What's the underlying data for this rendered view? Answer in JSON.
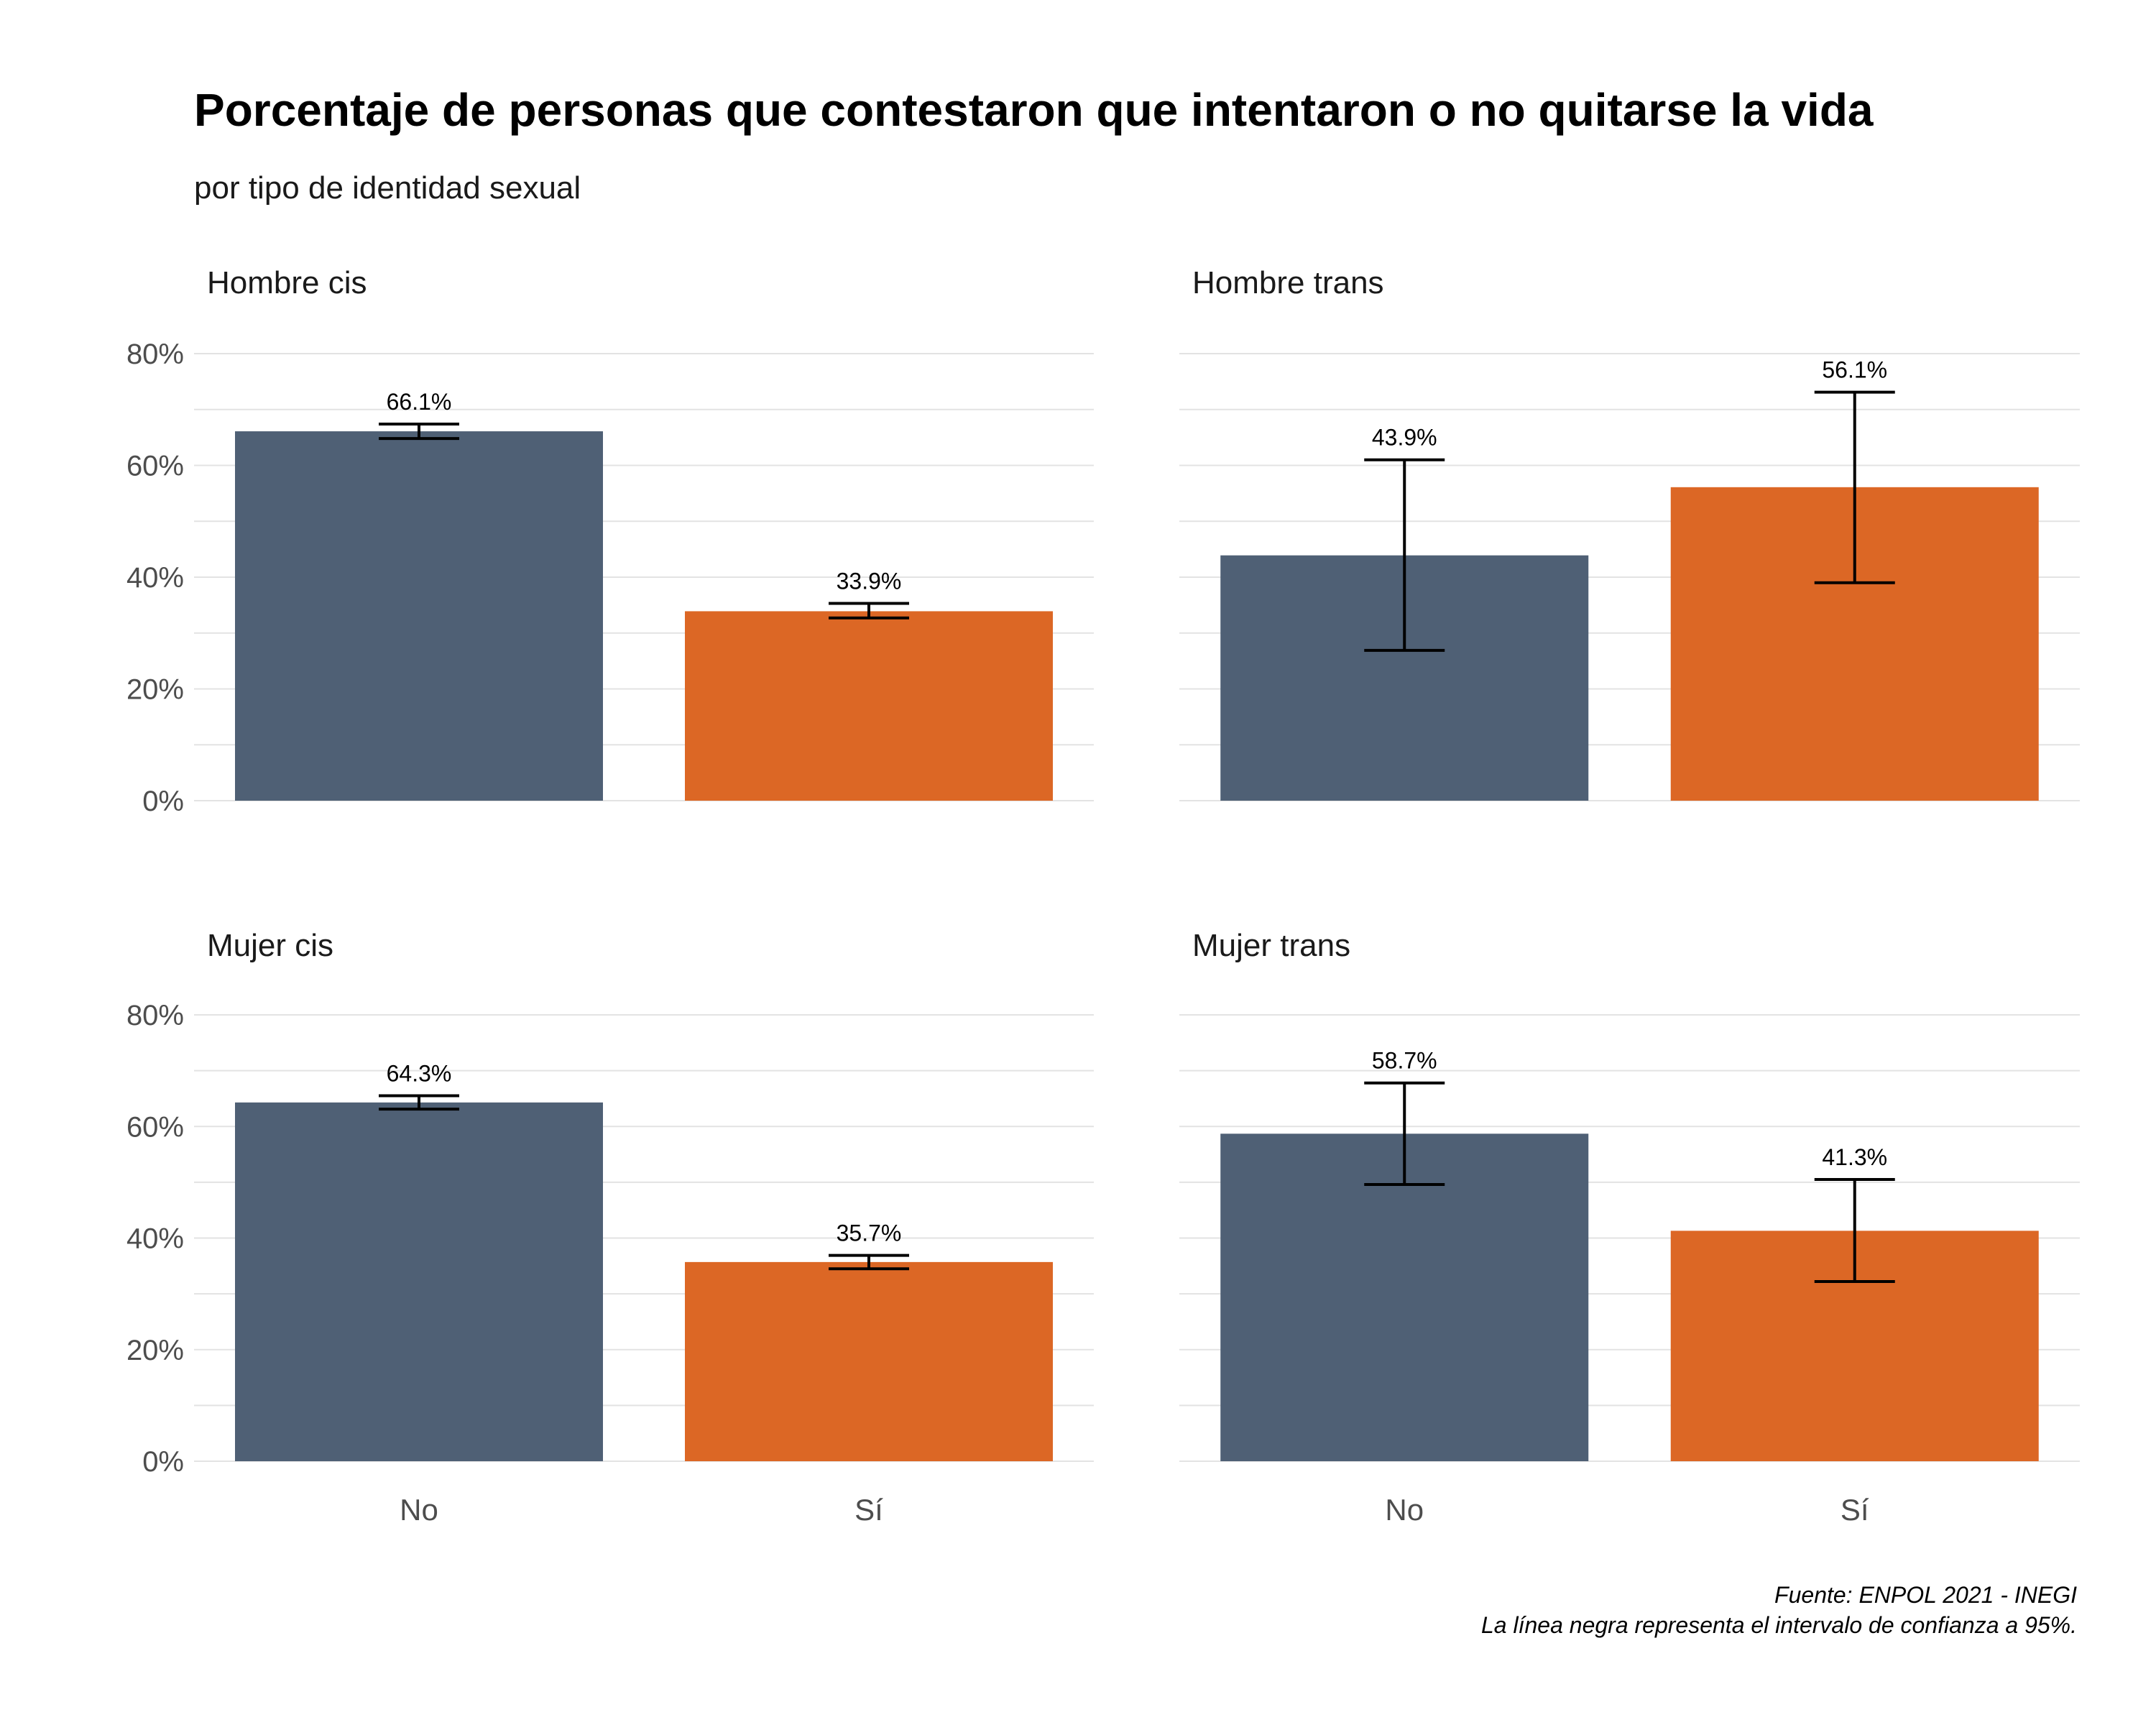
{
  "chart_data": {
    "type": "bar",
    "title": "Porcentaje de personas que contestaron que intentaron o no quitarse la vida",
    "subtitle": "por tipo de identidad sexual",
    "categories": [
      "No",
      "Sí"
    ],
    "y_ticks": [
      "0%",
      "20%",
      "40%",
      "60%",
      "80%"
    ],
    "ylim": [
      0,
      80
    ],
    "grid": true,
    "legend": "none",
    "colors": {
      "No": "#4f6075",
      "Sí": "#dc6725"
    },
    "panels": [
      {
        "name": "Hombre cis",
        "values": [
          66.1,
          33.9
        ],
        "labels": [
          "66.1%",
          "33.9%"
        ],
        "ci_low": [
          64.8,
          32.7
        ],
        "ci_high": [
          67.4,
          35.3
        ]
      },
      {
        "name": "Hombre trans",
        "values": [
          43.9,
          56.1
        ],
        "labels": [
          "43.9%",
          "56.1%"
        ],
        "ci_low": [
          26.9,
          39.0
        ],
        "ci_high": [
          61.0,
          73.1
        ]
      },
      {
        "name": "Mujer cis",
        "values": [
          64.3,
          35.7
        ],
        "labels": [
          "64.3%",
          "35.7%"
        ],
        "ci_low": [
          63.1,
          34.5
        ],
        "ci_high": [
          65.5,
          36.9
        ]
      },
      {
        "name": "Mujer trans",
        "values": [
          58.7,
          41.3
        ],
        "labels": [
          "58.7%",
          "41.3%"
        ],
        "ci_low": [
          49.6,
          32.2
        ],
        "ci_high": [
          67.8,
          50.5
        ]
      }
    ],
    "caption": [
      "Fuente: ENPOL 2021 - INEGI",
      "La línea negra representa el intervalo de confianza a 95%."
    ]
  }
}
